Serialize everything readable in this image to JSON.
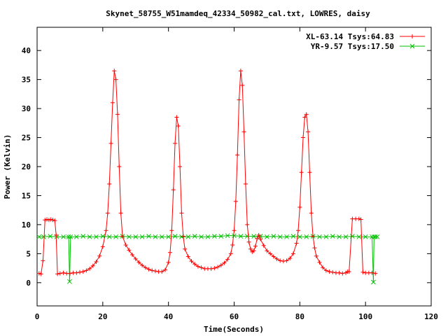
{
  "chart_data": {
    "type": "line",
    "title": "Skynet_58755_W51mamdeq_42334_50982_cal.txt, LOWRES, daisy",
    "xlabel": "Time(Seconds)",
    "ylabel": "Power (Kelvin)",
    "xlim": [
      0,
      120
    ],
    "ylim": [
      -4,
      44
    ],
    "x_ticks": [
      0,
      20,
      40,
      60,
      80,
      100,
      120
    ],
    "y_ticks": [
      0,
      5,
      10,
      15,
      20,
      25,
      30,
      35,
      40
    ],
    "grid": false,
    "legend_position": "top-right",
    "series": [
      {
        "name": "XL-63.14 Tsys:64.83",
        "color": "#ff0000",
        "marker": "plus",
        "x": [
          0.6,
          1.2,
          1.8,
          2.4,
          3.0,
          3.6,
          4.2,
          4.8,
          5.4,
          5.8,
          6.2,
          7.0,
          8.0,
          9.0,
          10.0,
          11.0,
          12.0,
          13.0,
          14.0,
          15.0,
          16.0,
          17.0,
          18.0,
          19.0,
          20.0,
          21.0,
          21.5,
          22.0,
          22.5,
          23.0,
          23.5,
          24.0,
          24.5,
          25.0,
          25.5,
          26.0,
          27.0,
          28.0,
          29.0,
          30.0,
          31.0,
          32.0,
          33.0,
          34.0,
          35.0,
          36.0,
          37.0,
          38.0,
          39.0,
          40.0,
          40.5,
          41.0,
          41.5,
          42.0,
          42.5,
          43.0,
          43.5,
          44.0,
          44.5,
          45.0,
          46.0,
          47.0,
          48.0,
          49.0,
          50.0,
          51.0,
          52.0,
          53.0,
          54.0,
          55.0,
          56.0,
          57.0,
          58.0,
          59.0,
          59.5,
          60.0,
          60.5,
          61.0,
          61.5,
          62.0,
          62.5,
          63.0,
          63.5,
          64.0,
          64.5,
          65.0,
          65.5,
          66.0,
          66.5,
          67.0,
          67.5,
          68.0,
          69.0,
          70.0,
          71.0,
          72.0,
          73.0,
          74.0,
          75.0,
          76.0,
          77.0,
          78.0,
          79.0,
          79.5,
          80.0,
          80.5,
          81.0,
          81.5,
          82.0,
          82.5,
          83.0,
          83.5,
          84.0,
          84.5,
          85.0,
          86.0,
          87.0,
          88.0,
          89.0,
          90.0,
          91.0,
          92.0,
          93.0,
          94.0,
          94.5,
          95.0,
          96.0,
          97.0,
          98.0,
          98.6,
          99.2,
          100.0,
          101.0,
          102.0,
          103.0
        ],
        "y": [
          1.6,
          1.5,
          3.8,
          10.8,
          10.9,
          10.8,
          10.9,
          10.8,
          10.7,
          8.2,
          1.5,
          1.6,
          1.7,
          1.6,
          1.6,
          1.7,
          1.7,
          1.8,
          1.9,
          2.1,
          2.4,
          2.9,
          3.6,
          4.6,
          6.2,
          9.0,
          12.0,
          17.0,
          24.0,
          31.0,
          36.5,
          35.0,
          29.0,
          20.0,
          12.0,
          8.0,
          6.5,
          5.6,
          4.8,
          4.1,
          3.5,
          3.0,
          2.6,
          2.3,
          2.1,
          2.0,
          1.9,
          1.9,
          2.2,
          3.5,
          5.2,
          9.0,
          16.0,
          24.0,
          28.5,
          27.0,
          20.0,
          12.0,
          8.0,
          5.8,
          4.5,
          3.7,
          3.2,
          2.8,
          2.6,
          2.4,
          2.4,
          2.4,
          2.5,
          2.7,
          3.0,
          3.4,
          4.0,
          5.0,
          6.5,
          9.0,
          14.0,
          22.0,
          31.5,
          36.5,
          34.0,
          26.0,
          17.0,
          10.0,
          7.0,
          5.8,
          5.3,
          5.5,
          6.3,
          7.6,
          8.2,
          7.5,
          6.4,
          5.5,
          5.0,
          4.5,
          4.1,
          3.8,
          3.7,
          3.8,
          4.2,
          5.0,
          6.8,
          9.0,
          13.0,
          19.0,
          25.0,
          28.5,
          29.0,
          26.0,
          19.0,
          12.0,
          8.0,
          6.0,
          4.6,
          3.5,
          2.6,
          2.1,
          1.9,
          1.8,
          1.7,
          1.7,
          1.6,
          1.7,
          1.9,
          1.9,
          11.0,
          11.0,
          11.0,
          10.9,
          1.8,
          1.7,
          1.7,
          1.7,
          1.6
        ]
      },
      {
        "name": "YR-9.57 Tsys:17.50",
        "color": "#00c000",
        "marker": "x",
        "x": [
          0.6,
          2,
          4,
          6,
          8,
          9.6,
          9.9,
          10.2,
          12,
          14,
          16,
          18,
          20,
          22,
          24,
          26,
          28,
          30,
          32,
          34,
          36,
          38,
          40,
          42,
          44,
          46,
          48,
          50,
          52,
          54,
          56,
          58,
          60,
          62,
          64,
          66,
          68,
          70,
          72,
          74,
          76,
          78,
          80,
          82,
          84,
          86,
          88,
          90,
          92,
          94,
          96,
          98,
          100,
          102,
          102.4,
          102.6,
          103,
          103.6
        ],
        "y": [
          7.9,
          7.9,
          8.0,
          7.9,
          7.9,
          7.9,
          0.2,
          7.9,
          7.9,
          8.0,
          7.9,
          7.9,
          8.0,
          7.9,
          7.9,
          8.0,
          7.9,
          7.9,
          7.9,
          8.0,
          7.9,
          7.9,
          7.9,
          8.0,
          7.9,
          7.9,
          8.0,
          7.9,
          7.9,
          8.0,
          8.0,
          8.1,
          8.1,
          8.0,
          8.0,
          8.0,
          8.0,
          7.9,
          8.0,
          7.9,
          7.9,
          8.0,
          7.9,
          7.9,
          8.0,
          7.9,
          7.9,
          8.0,
          7.9,
          7.9,
          8.0,
          7.9,
          7.9,
          7.9,
          0.1,
          7.9,
          7.9,
          7.9
        ]
      }
    ]
  }
}
